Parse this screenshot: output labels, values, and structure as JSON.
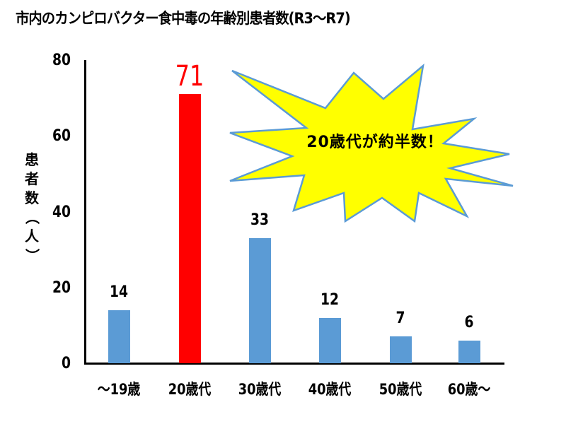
{
  "chart_data": {
    "type": "bar",
    "title": "市内のカンピロバクター食中毒の年齢別患者数(R3〜R7)",
    "xlabel": "",
    "ylabel": "患者数（人）",
    "ylim": [
      0,
      80
    ],
    "yticks": [
      "0",
      "20",
      "40",
      "60",
      "80"
    ],
    "categories": [
      "〜19歳",
      "20歳代",
      "30歳代",
      "40歳代",
      "50歳代",
      "60歳〜"
    ],
    "values": [
      14,
      71,
      33,
      12,
      7,
      6
    ],
    "value_labels": [
      "14",
      "71",
      "33",
      "12",
      "7",
      "6"
    ],
    "highlight_index": 1,
    "grid": false,
    "legend": "none",
    "annotation": "20歳代が約半数！"
  },
  "colors": {
    "bar": "#5b9bd5",
    "highlight_bar": "#ff0000",
    "highlight_label": "#ff0000",
    "burst_fill": "#ffff00",
    "burst_stroke": "#5b9bd5",
    "axis": "#000000"
  },
  "ylabel_chars": [
    "患",
    "者",
    "数",
    "（",
    "人",
    "）"
  ]
}
